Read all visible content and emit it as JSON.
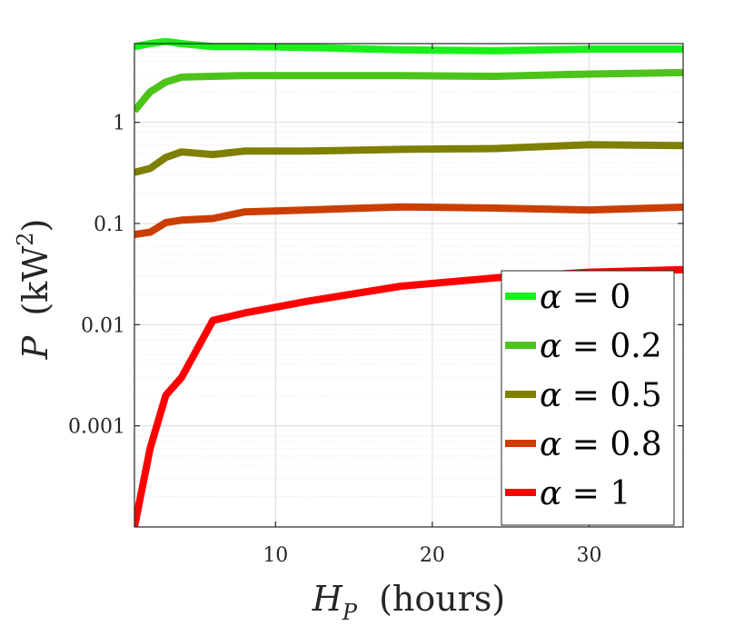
{
  "chart_data": {
    "type": "line",
    "xlabel": "H_P (hours)",
    "ylabel": "P (kW^2)",
    "xlabel_main": "H",
    "xlabel_sub": "P",
    "xlabel_rest": "(hours)",
    "ylabel_main": "P",
    "ylabel_rest": "(kW",
    "ylabel_sup": "2",
    "ylabel_close": ")",
    "xlim": [
      1,
      36
    ],
    "ylim": [
      0.0001,
      6
    ],
    "yscale": "log",
    "xticks": [
      10,
      20,
      30
    ],
    "xtick_labels": [
      "10",
      "20",
      "30"
    ],
    "yticks": [
      0.001,
      0.01,
      0.1,
      1
    ],
    "ytick_labels": [
      "0.001",
      "0.01",
      "0.1",
      "1"
    ],
    "grid": true,
    "legend_position": "bottom-right",
    "x": [
      1,
      2,
      3,
      4,
      6,
      8,
      12,
      18,
      24,
      30,
      36
    ],
    "series": [
      {
        "name": "α = 0",
        "label_prefix": "α",
        "label_value": "0",
        "color": "#19f019",
        "values": [
          5.6,
          6.0,
          6.3,
          6.0,
          5.6,
          5.6,
          5.5,
          5.2,
          5.1,
          5.3,
          5.3
        ]
      },
      {
        "name": "α = 0.2",
        "label_prefix": "α",
        "label_value": "0.2",
        "color": "#4cc319",
        "values": [
          1.3,
          2.0,
          2.5,
          2.8,
          2.85,
          2.9,
          2.9,
          2.9,
          2.85,
          3.0,
          3.1
        ]
      },
      {
        "name": "α = 0.5",
        "label_prefix": "α",
        "label_value": "0.5",
        "color": "#7f7f00",
        "values": [
          0.32,
          0.35,
          0.45,
          0.51,
          0.48,
          0.52,
          0.52,
          0.54,
          0.55,
          0.6,
          0.59
        ]
      },
      {
        "name": "α = 0.8",
        "label_prefix": "α",
        "label_value": "0.8",
        "color": "#cc3d00",
        "values": [
          0.078,
          0.082,
          0.102,
          0.108,
          0.112,
          0.13,
          0.136,
          0.146,
          0.142,
          0.136,
          0.145
        ]
      },
      {
        "name": "α = 1",
        "label_prefix": "α",
        "label_value": "1",
        "color": "#ff0000",
        "values": [
          0.0001,
          0.0006,
          0.002,
          0.003,
          0.011,
          0.013,
          0.017,
          0.024,
          0.029,
          0.033,
          0.035
        ]
      }
    ]
  }
}
